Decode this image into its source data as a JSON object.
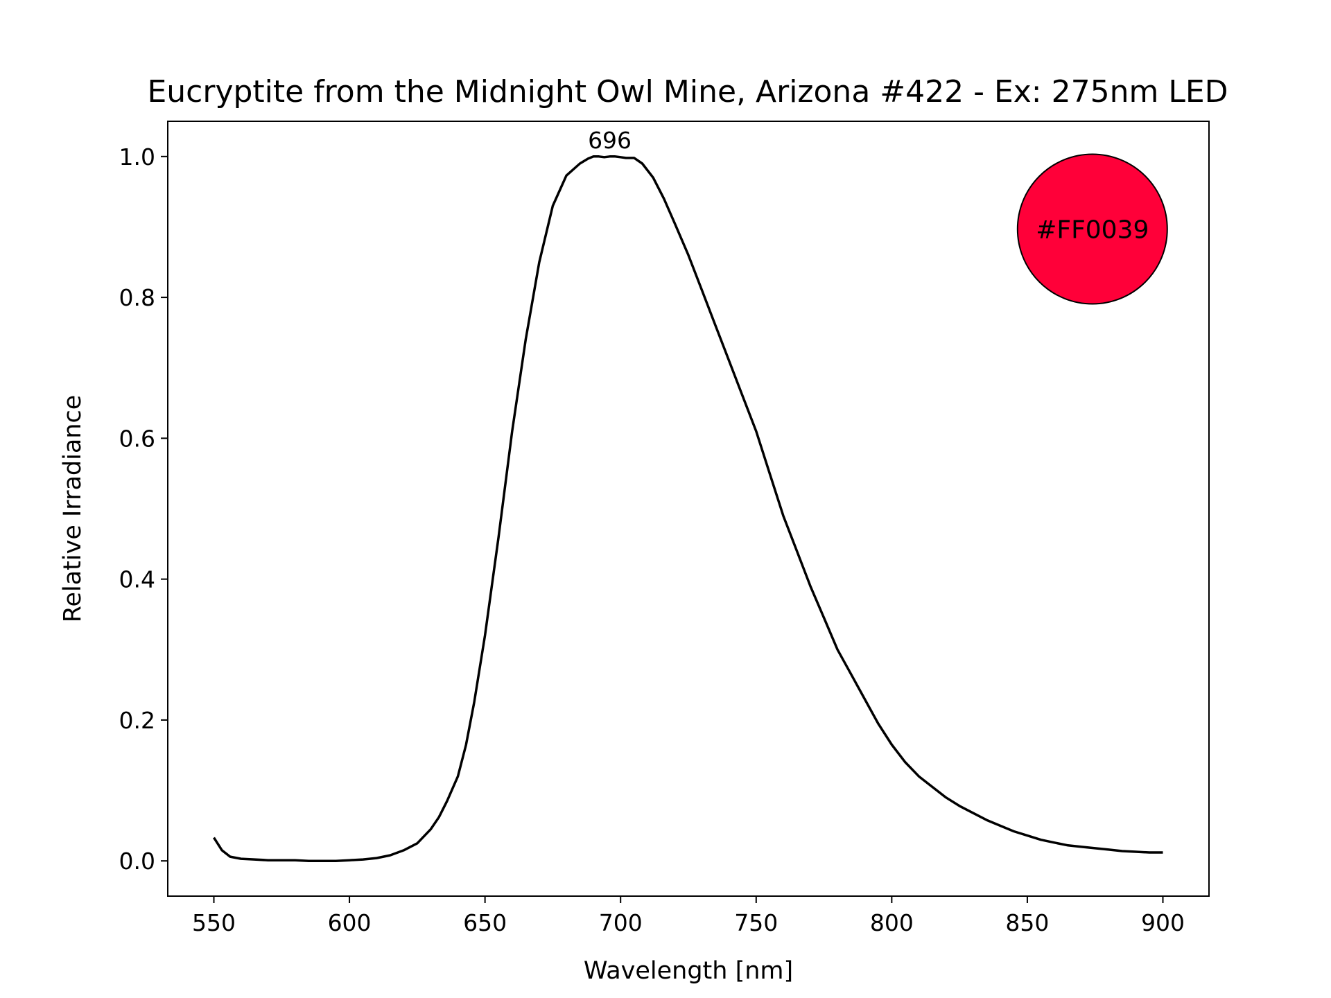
{
  "chart_data": {
    "type": "line",
    "title": "Eucryptite from the Midnight Owl Mine, Arizona #422 - Ex: 275nm LED",
    "xlabel": "Wavelength [nm]",
    "ylabel": "Relative Irradiance",
    "xlim": [
      533,
      917
    ],
    "ylim": [
      -0.05,
      1.05
    ],
    "xticks": [
      550,
      600,
      650,
      700,
      750,
      800,
      850,
      900
    ],
    "yticks": [
      0.0,
      0.2,
      0.4,
      0.6,
      0.8,
      1.0
    ],
    "xtick_labels": [
      "550",
      "600",
      "650",
      "700",
      "750",
      "800",
      "850",
      "900"
    ],
    "ytick_labels": [
      "0.0",
      "0.2",
      "0.4",
      "0.6",
      "0.8",
      "1.0"
    ],
    "grid": false,
    "legend": "none",
    "series": [
      {
        "color": "#000000",
        "x": [
          550,
          553,
          556,
          560,
          565,
          570,
          575,
          580,
          585,
          590,
          595,
          600,
          605,
          610,
          615,
          620,
          625,
          630,
          633,
          636,
          640,
          643,
          646,
          650,
          655,
          660,
          665,
          670,
          675,
          680,
          685,
          688,
          690,
          692,
          694,
          696,
          698,
          700,
          702,
          705,
          708,
          712,
          716,
          720,
          725,
          730,
          735,
          740,
          745,
          750,
          755,
          760,
          765,
          770,
          775,
          780,
          785,
          790,
          795,
          800,
          805,
          810,
          815,
          820,
          825,
          830,
          835,
          840,
          845,
          850,
          855,
          860,
          865,
          870,
          875,
          880,
          885,
          890,
          895,
          900
        ],
        "y": [
          0.033,
          0.015,
          0.006,
          0.003,
          0.002,
          0.001,
          0.001,
          0.001,
          0.0,
          0.0,
          0.0,
          0.001,
          0.002,
          0.004,
          0.008,
          0.015,
          0.025,
          0.045,
          0.062,
          0.085,
          0.12,
          0.165,
          0.225,
          0.32,
          0.46,
          0.61,
          0.74,
          0.85,
          0.93,
          0.973,
          0.99,
          0.997,
          1.0,
          1.0,
          0.999,
          1.0,
          1.0,
          0.999,
          0.998,
          0.998,
          0.99,
          0.97,
          0.94,
          0.905,
          0.86,
          0.81,
          0.76,
          0.71,
          0.66,
          0.61,
          0.55,
          0.49,
          0.44,
          0.39,
          0.345,
          0.3,
          0.265,
          0.23,
          0.195,
          0.165,
          0.14,
          0.12,
          0.105,
          0.09,
          0.078,
          0.068,
          0.058,
          0.05,
          0.042,
          0.036,
          0.03,
          0.026,
          0.022,
          0.02,
          0.018,
          0.016,
          0.014,
          0.013,
          0.012,
          0.012
        ]
      }
    ],
    "annotations": [
      {
        "text": "696",
        "x": 696,
        "y": 1.0
      }
    ],
    "swatch": {
      "text": "#FF0039",
      "color": "#FF0039",
      "x": 874,
      "y": 0.897
    }
  }
}
